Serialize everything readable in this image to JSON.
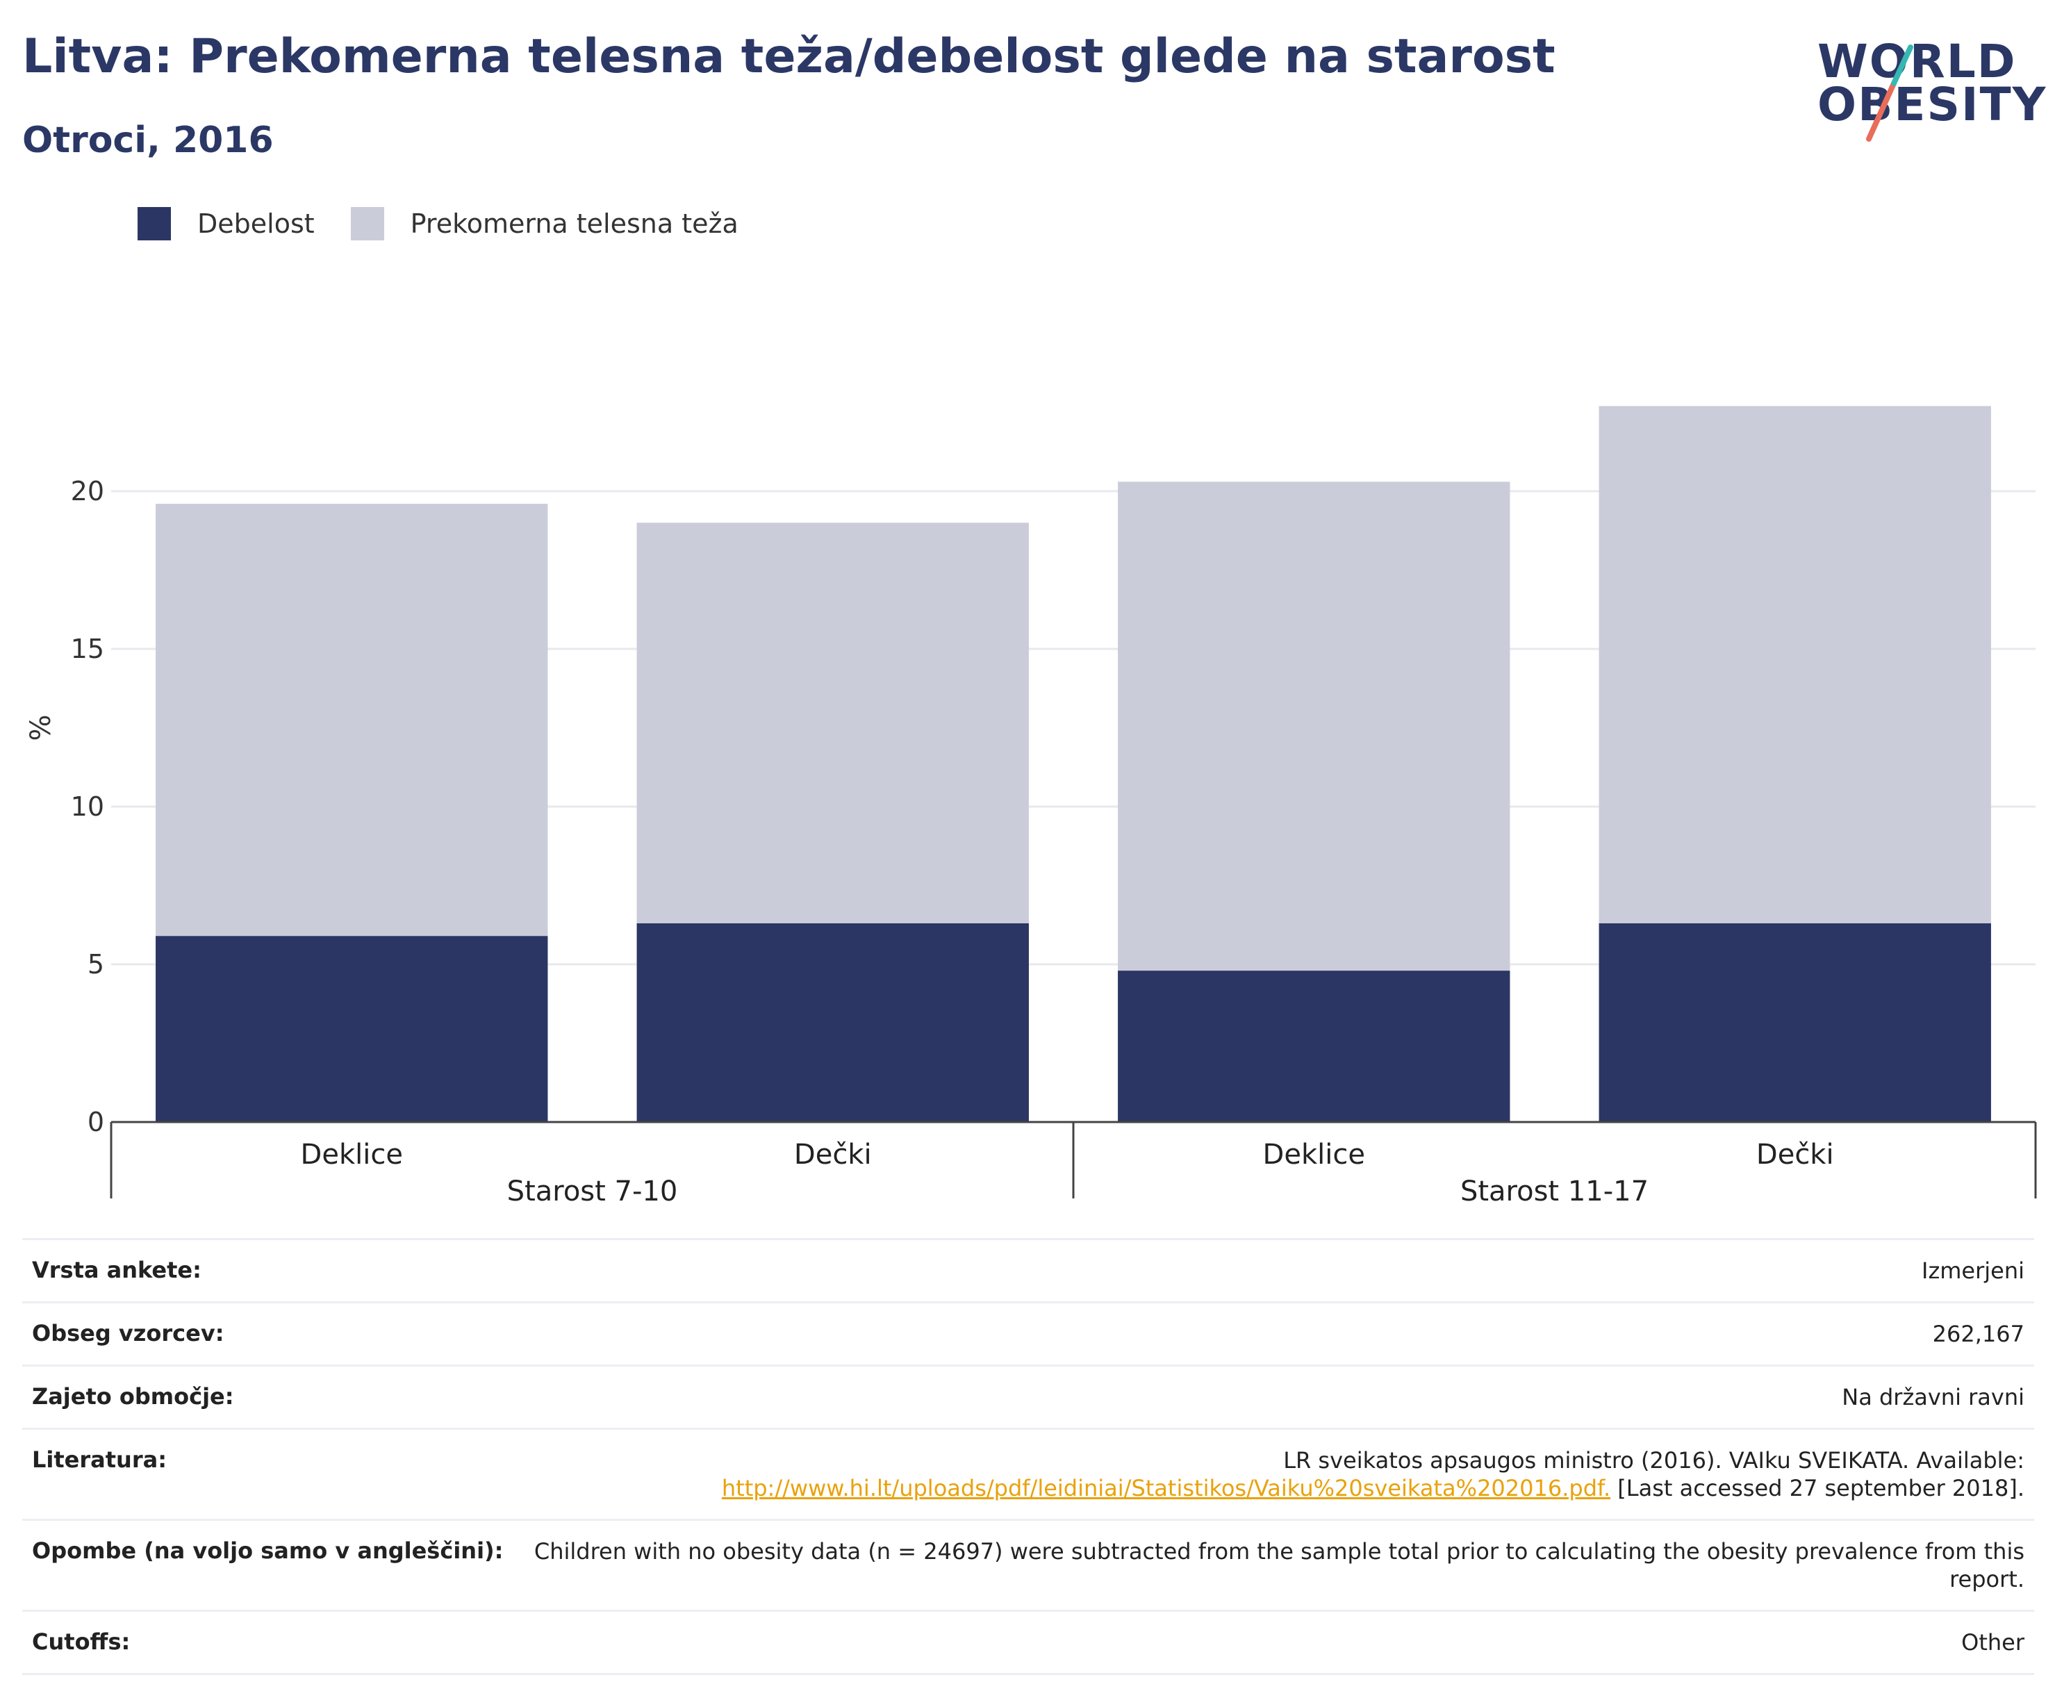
{
  "header": {
    "title": "Litva: Prekomerna telesna teža/debelost glede na starost",
    "subtitle": "Otroci, 2016"
  },
  "logo": {
    "line1": "WORLD",
    "line2": "OBESITY"
  },
  "legend": [
    {
      "label": "Debelost",
      "color": "#2b3664"
    },
    {
      "label": "Prekomerna telesna teža",
      "color": "#cacdd9"
    }
  ],
  "chart_data": {
    "type": "bar",
    "stacked": true,
    "ylabel": "%",
    "ylim": [
      0,
      25
    ],
    "yticks": [
      0,
      5,
      10,
      15,
      20
    ],
    "grid": true,
    "legend_position": "top-left",
    "groups": [
      {
        "label": "Starost 7-10",
        "categories": [
          "Deklice",
          "Dečki"
        ]
      },
      {
        "label": "Starost 11-17",
        "categories": [
          "Deklice",
          "Dečki"
        ]
      }
    ],
    "categories": [
      "Deklice",
      "Dečki",
      "Deklice",
      "Dečki"
    ],
    "series": [
      {
        "name": "Debelost",
        "color": "#2b3664",
        "values": [
          5.9,
          6.3,
          4.8,
          6.3
        ]
      },
      {
        "name": "Prekomerna telesna teža",
        "color": "#cacdd9",
        "values": [
          13.7,
          12.7,
          15.5,
          16.4
        ]
      }
    ]
  },
  "info": {
    "survey_type": {
      "label": "Vrsta ankete:",
      "value": "Izmerjeni"
    },
    "sample_size": {
      "label": "Obseg vzorcev:",
      "value": "262,167"
    },
    "area": {
      "label": "Zajeto območje:",
      "value": "Na državni ravni"
    },
    "references": {
      "label": "Literatura:",
      "text_before": "LR sveikatos apsaugos ministro (2016). VAIku SVEIKATA. Available:",
      "link": "http://www.hi.lt/uploads/pdf/leidiniai/Statistikos/Vaiku%20sveikata%202016.pdf.",
      "text_after": "[Last accessed 27 september 2018]."
    },
    "notes": {
      "label": "Opombe (na voljo samo v angleščini):",
      "value": "Children with no obesity data (n = 24697) were subtracted from the sample total prior to calculating the obesity prevalence from this report."
    },
    "cutoffs": {
      "label": "Cutoffs:",
      "value": "Other"
    }
  }
}
